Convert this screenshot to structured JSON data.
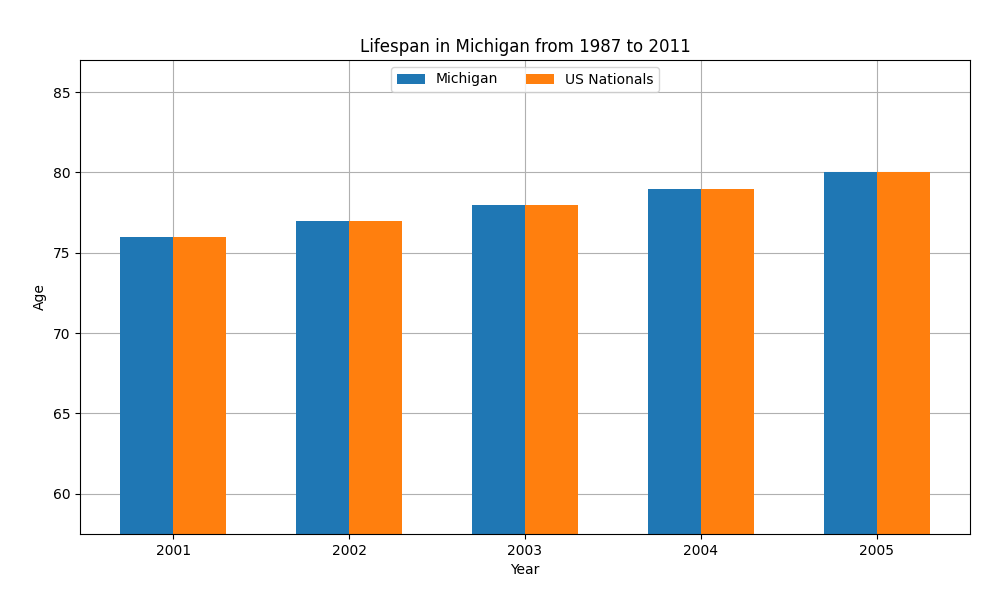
{
  "chart_data": {
    "type": "bar",
    "title": "Lifespan in Michigan from 1987 to 2011",
    "x_label": "Year",
    "y_label": "Age",
    "categories": [
      "2001",
      "2002",
      "2003",
      "2004",
      "2005"
    ],
    "series": [
      {
        "name": "Michigan",
        "values": [
          76,
          77,
          78,
          79,
          80
        ]
      },
      {
        "name": "US Nationals",
        "values": [
          76,
          77,
          78,
          79,
          80
        ]
      }
    ],
    "ylim": [
      57.5,
      87
    ],
    "yticks": [
      60,
      65,
      70,
      75,
      80,
      85
    ],
    "grid": true,
    "legend": "upper center"
  }
}
